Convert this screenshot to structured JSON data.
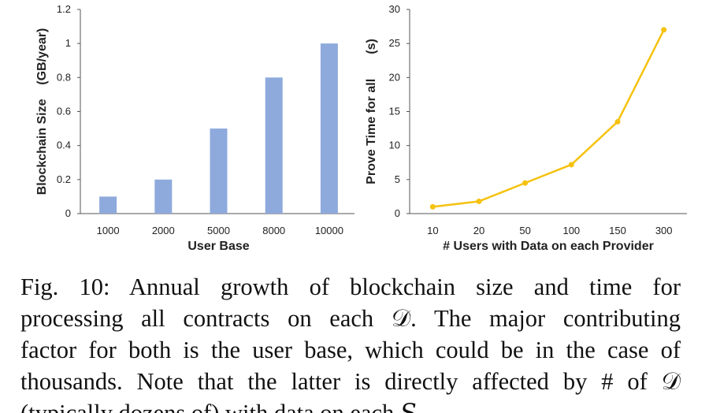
{
  "chart_data": [
    {
      "type": "bar",
      "categories": [
        "1000",
        "2000",
        "5000",
        "8000",
        "10000"
      ],
      "values": [
        0.1,
        0.2,
        0.5,
        0.8,
        1.0
      ],
      "xlabel": "User Base",
      "ylabel": "Blockchain Size    (GB/year)",
      "ylim": [
        0,
        1.2
      ],
      "yticks": [
        "0",
        "0.2",
        "0.4",
        "0.6",
        "0.8",
        "1",
        "1.2"
      ],
      "grid": false,
      "color": "#8eaadc"
    },
    {
      "type": "line",
      "categories": [
        "10",
        "20",
        "50",
        "100",
        "150",
        "300"
      ],
      "values": [
        1.0,
        1.8,
        4.5,
        7.2,
        13.5,
        27.0
      ],
      "xlabel": "# Users with Data on each Provider",
      "ylabel": "Prove Time for all       (s)",
      "ylim": [
        0,
        30
      ],
      "yticks": [
        "0",
        "5",
        "10",
        "15",
        "20",
        "25",
        "30"
      ],
      "grid": false,
      "color": "#f5c20f"
    }
  ],
  "caption": {
    "lines": [
      "Fig. 10: Annual growth of blockchain size and time for",
      "processing all contracts on each 𝒟. The major contributing",
      "factor for both is the user base, which could be in the case of",
      "thousands. Note that the latter is directly affected by # of 𝒟",
      "(typically dozens of) with data on each 𝑆."
    ]
  }
}
